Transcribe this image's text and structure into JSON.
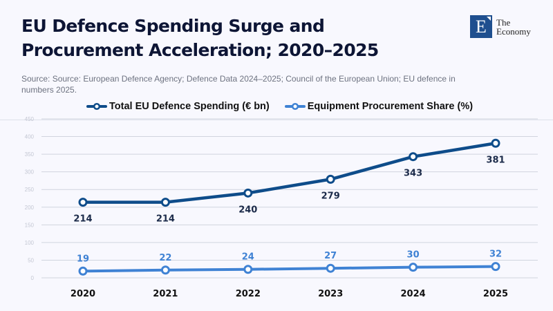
{
  "header": {
    "title": "EU Defence Spending Surge and Procurement Acceleration; 2020–2025",
    "source": "Source: Source: European Defence Agency; Defence Data 2024–2025; Council of the European Union; EU defence in numbers 2025."
  },
  "logo": {
    "letter": "E",
    "line1": "The",
    "line2": "Economy",
    "color": "#1f4f8f"
  },
  "chart_data": {
    "type": "line",
    "title": "EU Defence Spending Surge and Procurement Acceleration; 2020–2025",
    "xlabel": "",
    "ylabel": "",
    "categories": [
      "2020",
      "2021",
      "2022",
      "2023",
      "2024",
      "2025"
    ],
    "y_ticks": [
      0,
      50,
      100,
      150,
      200,
      250,
      300,
      350,
      400,
      450
    ],
    "ylim": [
      0,
      450
    ],
    "grid": true,
    "legend_position": "top",
    "series": [
      {
        "name": "Total EU Defence Spending (€ bn)",
        "values": [
          214,
          214,
          240,
          279,
          343,
          381
        ],
        "color": "#0e4c8a",
        "label_color": "#1c2b4a",
        "label_position": "below"
      },
      {
        "name": "Equipment Procurement Share (%)",
        "values": [
          19,
          22,
          24,
          27,
          30,
          32
        ],
        "color": "#3f82d4",
        "label_color": "#3f82d4",
        "label_position": "above"
      }
    ]
  }
}
